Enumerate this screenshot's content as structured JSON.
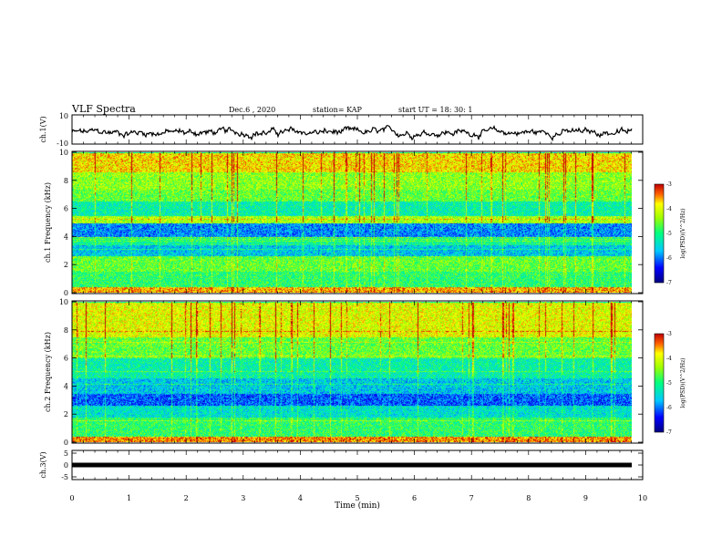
{
  "header": {
    "title": "VLF Spectra",
    "date": "Dec.6 , 2020",
    "station": "station= KAP",
    "start": "start UT = 18: 30: 1"
  },
  "chart_data": [
    {
      "type": "line",
      "panel": "ch1",
      "ylabel": "ch.1(V)",
      "ylim": [
        -10,
        10
      ],
      "yticks": [
        "10",
        "-10"
      ],
      "xlim": [
        0,
        10
      ],
      "series": [
        {
          "values_description_free": true,
          "trend": "noisy waveform around -2 V, range about -8 to 6"
        }
      ]
    },
    {
      "type": "heatmap",
      "panel": "ch1-spectrogram",
      "ylabel": "ch.1 Frequency (kHz)",
      "ylim": [
        0,
        10
      ],
      "yticks": [
        "0",
        "2",
        "4",
        "6",
        "8",
        "10"
      ],
      "xlim": [
        0,
        9.8
      ],
      "colorbar": {
        "label": "log(PSD)(V^2/Hz)",
        "ticks": [
          "-3",
          "-4",
          "-5",
          "-6",
          "-7"
        ],
        "range": [
          -7,
          -3
        ]
      },
      "bands_khz": [
        {
          "from": 0,
          "to": 0.4,
          "level": -3.6
        },
        {
          "from": 0.4,
          "to": 1.5,
          "level": -4.9
        },
        {
          "from": 1.5,
          "to": 2.6,
          "level": -4.6
        },
        {
          "from": 2.6,
          "to": 3.4,
          "level": -5.6
        },
        {
          "from": 3.4,
          "to": 4.0,
          "level": -5.1
        },
        {
          "from": 4.0,
          "to": 5.0,
          "level": -5.9
        },
        {
          "from": 5.0,
          "to": 5.5,
          "level": -4.3
        },
        {
          "from": 5.5,
          "to": 6.5,
          "level": -5.2
        },
        {
          "from": 6.5,
          "to": 7.4,
          "level": -4.6
        },
        {
          "from": 7.4,
          "to": 8.6,
          "level": -4.4
        },
        {
          "from": 8.6,
          "to": 10,
          "level": -3.8
        }
      ]
    },
    {
      "type": "heatmap",
      "panel": "ch2-spectrogram",
      "ylabel": "ch.2 Frequency (kHz)",
      "ylim": [
        0,
        10
      ],
      "yticks": [
        "0",
        "2",
        "4",
        "6",
        "8",
        "10"
      ],
      "xlim": [
        0,
        9.8
      ],
      "colorbar": {
        "label": "log(PSD)(V^2/Hz)",
        "ticks": [
          "-3",
          "-4",
          "-5",
          "-6",
          "-7"
        ],
        "range": [
          -7,
          -3
        ]
      },
      "bands_khz": [
        {
          "from": 0,
          "to": 0.4,
          "level": -3.5
        },
        {
          "from": 0.4,
          "to": 1.8,
          "level": -4.9
        },
        {
          "from": 1.8,
          "to": 2.6,
          "level": -5.4
        },
        {
          "from": 2.6,
          "to": 3.5,
          "level": -6.1
        },
        {
          "from": 3.5,
          "to": 4.6,
          "level": -5.6
        },
        {
          "from": 4.6,
          "to": 6.0,
          "level": -5.2
        },
        {
          "from": 6.0,
          "to": 7.5,
          "level": -4.6
        },
        {
          "from": 7.5,
          "to": 10,
          "level": -4.0
        }
      ]
    },
    {
      "type": "line",
      "panel": "ch3",
      "ylabel": "ch.3(V)",
      "ylim": [
        -5,
        5
      ],
      "yticks": [
        "5",
        "0",
        "-5"
      ],
      "xlim": [
        0,
        10
      ],
      "xlabel": "Time (min)",
      "xticks": [
        "0",
        "1",
        "2",
        "3",
        "4",
        "5",
        "6",
        "7",
        "8",
        "9",
        "10"
      ],
      "level_v": 0.0
    }
  ]
}
